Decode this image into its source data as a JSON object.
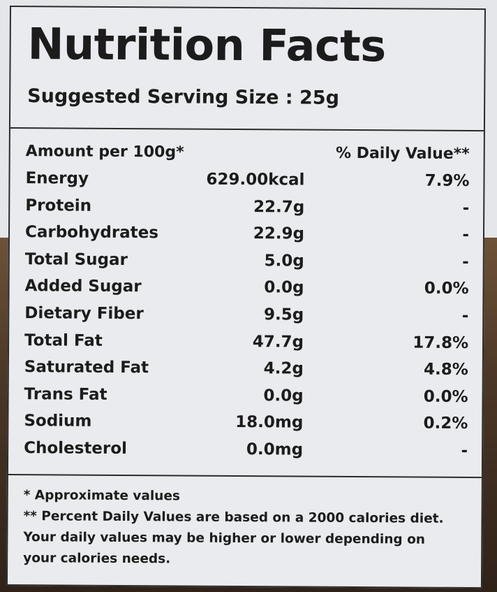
{
  "label": {
    "title": "Nutrition Facts",
    "serving_size": "Suggested Serving Size  :  25g",
    "header_amount": "Amount per 100g*",
    "header_daily_value": "% Daily Value**",
    "rows": [
      {
        "name": "Energy",
        "amount": "629.00kcal",
        "dv": "7.9%"
      },
      {
        "name": "Protein",
        "amount": "22.7g",
        "dv": "-"
      },
      {
        "name": "Carbohydrates",
        "amount": "22.9g",
        "dv": "-"
      },
      {
        "name": "Total Sugar",
        "amount": "5.0g",
        "dv": "-"
      },
      {
        "name": "Added Sugar",
        "amount": "0.0g",
        "dv": "0.0%"
      },
      {
        "name": "Dietary Fiber",
        "amount": "9.5g",
        "dv": "-"
      },
      {
        "name": "Total Fat",
        "amount": "47.7g",
        "dv": "17.8%"
      },
      {
        "name": "Saturated Fat",
        "amount": "4.2g",
        "dv": "4.8%"
      },
      {
        "name": "Trans Fat",
        "amount": "0.0g",
        "dv": "0.0%"
      },
      {
        "name": "Sodium",
        "amount": "18.0mg",
        "dv": "0.2%"
      },
      {
        "name": "Cholesterol",
        "amount": "0.0mg",
        "dv": "-"
      }
    ],
    "footnotes": [
      "* Approximate values",
      "** Percent Daily Values are based on a 2000 calories diet.",
      "Your daily values may be higher or lower depending on",
      "your calories needs."
    ]
  }
}
